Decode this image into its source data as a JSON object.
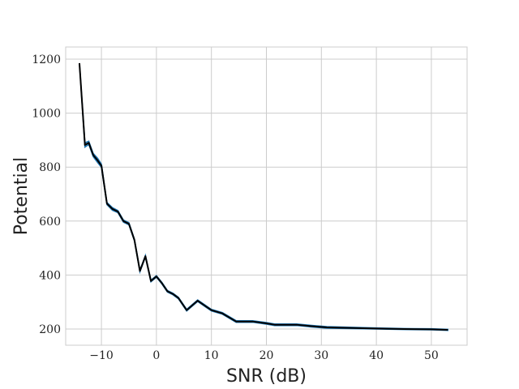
{
  "chart_data": {
    "type": "line",
    "title": "",
    "xlabel": "SNR (dB)",
    "ylabel": "Potential",
    "xlim": [
      -16.5,
      56.5
    ],
    "ylim": [
      140,
      1245
    ],
    "xticks": [
      -10,
      0,
      10,
      20,
      30,
      40,
      50
    ],
    "xtick_labels": [
      "−10",
      "0",
      "10",
      "20",
      "30",
      "40",
      "50"
    ],
    "yticks": [
      200,
      400,
      600,
      800,
      1000,
      1200
    ],
    "ytick_labels": [
      "200",
      "400",
      "600",
      "800",
      "1000",
      "1200"
    ],
    "grid": true,
    "legend": "none",
    "band_color": "#1f77b4",
    "line_color": "#000000",
    "series": [
      {
        "x": [
          -14,
          -13,
          -12.3,
          -11.5,
          -10.7,
          -10,
          -9,
          -8,
          -7,
          -6,
          -5,
          -4,
          -3,
          -2,
          -1,
          0,
          1,
          2,
          3,
          4,
          5.5,
          7.5,
          10,
          12,
          14.5,
          17.5,
          20,
          21.5,
          25.5,
          28,
          31,
          40,
          45,
          50,
          53
        ],
        "y": [
          1185,
          882,
          890,
          845,
          825,
          805,
          665,
          645,
          635,
          600,
          590,
          530,
          415,
          470,
          378,
          395,
          370,
          340,
          330,
          315,
          270,
          305,
          270,
          258,
          228,
          228,
          221,
          216,
          216,
          211,
          206,
          202,
          200,
          199,
          197
        ],
        "band": [
          0,
          8,
          6,
          6,
          8,
          6,
          4,
          5,
          4,
          4,
          4,
          3,
          3,
          3,
          3,
          3,
          3,
          3,
          3,
          3,
          3,
          3,
          3,
          3,
          3,
          3,
          3,
          3,
          3,
          3,
          3,
          2,
          2,
          2,
          2
        ]
      }
    ]
  }
}
